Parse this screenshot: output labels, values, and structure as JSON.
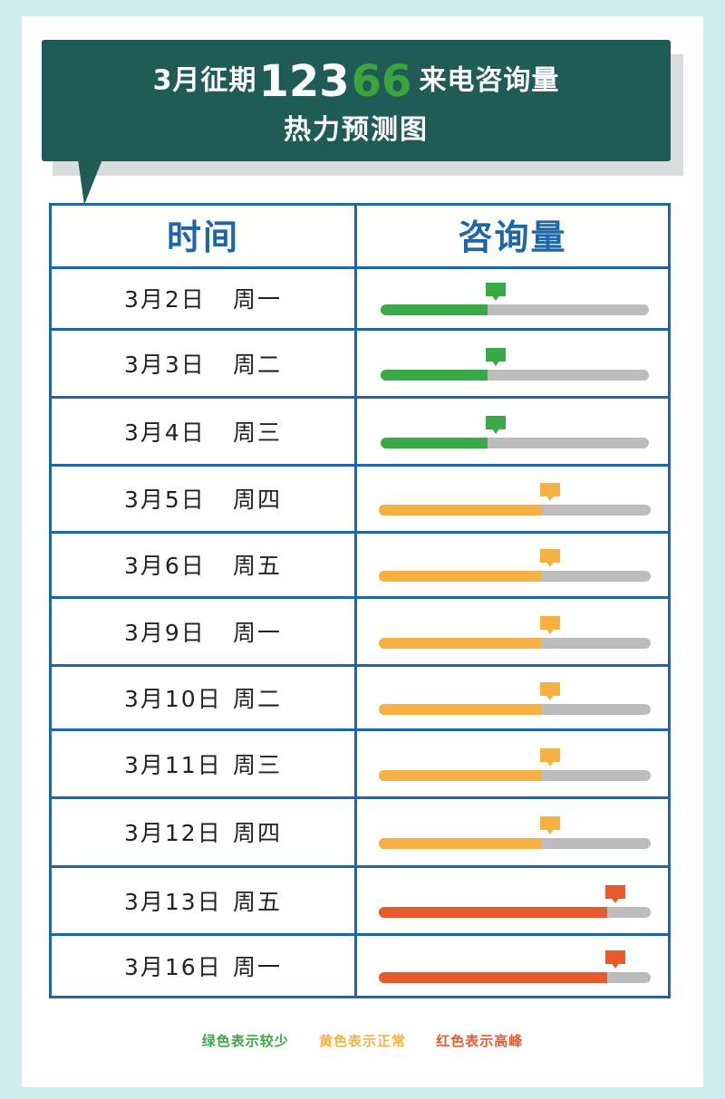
{
  "header": {
    "title_prefix": "3月征期",
    "title_number": "123",
    "title_number_highlight": "66",
    "title_suffix": "来电咨询量",
    "subtitle": "热力预测图"
  },
  "table": {
    "col_time": "时间",
    "col_volume": "咨询量",
    "rows": [
      {
        "date": "3月2日",
        "weekday": "周一",
        "level": "green",
        "fraction": 0.4
      },
      {
        "date": "3月3日",
        "weekday": "周二",
        "level": "green",
        "fraction": 0.4
      },
      {
        "date": "3月4日",
        "weekday": "周三",
        "level": "green",
        "fraction": 0.4
      },
      {
        "date": "3月5日",
        "weekday": "周四",
        "level": "yellow",
        "fraction": 0.6
      },
      {
        "date": "3月6日",
        "weekday": "周五",
        "level": "yellow",
        "fraction": 0.6
      },
      {
        "date": "3月9日",
        "weekday": "周一",
        "level": "yellow",
        "fraction": 0.6
      },
      {
        "date": "3月10日",
        "weekday": "周二",
        "level": "yellow",
        "fraction": 0.6
      },
      {
        "date": "3月11日",
        "weekday": "周三",
        "level": "yellow",
        "fraction": 0.6
      },
      {
        "date": "3月12日",
        "weekday": "周四",
        "level": "yellow",
        "fraction": 0.6
      },
      {
        "date": "3月13日",
        "weekday": "周五",
        "level": "red",
        "fraction": 0.84
      },
      {
        "date": "3月16日",
        "weekday": "周一",
        "level": "red",
        "fraction": 0.84
      }
    ]
  },
  "legend": {
    "green": "绿色表示较少",
    "yellow": "黄色表示正常",
    "red": "红色表示高峰"
  },
  "colors": {
    "green": "#3aaa48",
    "yellow": "#f7b142",
    "red": "#e85a2a",
    "track": "#bcbcbc",
    "table_border": "#1d66a8",
    "banner": "#1f5c55"
  }
}
